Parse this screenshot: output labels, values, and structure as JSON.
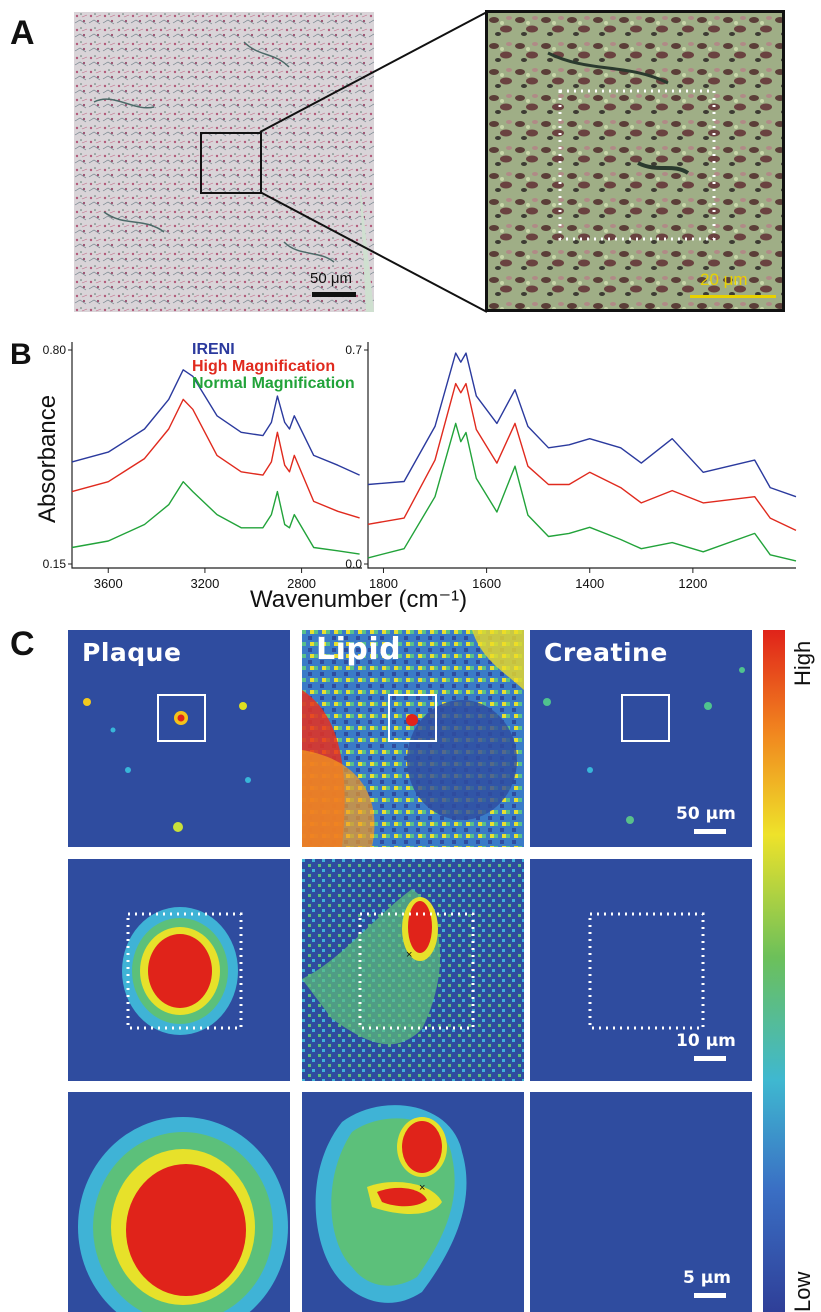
{
  "panel_a": {
    "letter": "A",
    "left_scale": "50 μm",
    "right_scale": "20 μm"
  },
  "panel_b": {
    "letter": "B",
    "ylabel": "Absorbance",
    "xlabel": "Wavenumber (cm⁻¹)",
    "legend": [
      {
        "name": "IRENI",
        "color": "#2b3a9e"
      },
      {
        "name": "High Magnification",
        "color": "#e02a1e"
      },
      {
        "name": "Normal Magnification",
        "color": "#22a33a"
      }
    ],
    "left_yticks": [
      "0.80",
      "0.15"
    ],
    "left_xticks": [
      "3600",
      "3200",
      "2800"
    ],
    "right_yticks": [
      "0.7",
      "0.0"
    ],
    "right_xticks": [
      "1800",
      "1600",
      "1400",
      "1200"
    ]
  },
  "chart_data": [
    {
      "type": "line",
      "x_unit": "cm⁻¹",
      "xlim": [
        3750,
        2550
      ],
      "ylim": [
        0.15,
        0.8
      ],
      "yticks": [
        0.15,
        0.8
      ],
      "xticks": [
        3600,
        3200,
        2800
      ],
      "series": [
        {
          "name": "IRENI",
          "x": [
            3750,
            3600,
            3450,
            3350,
            3290,
            3250,
            3150,
            3050,
            2960,
            2925,
            2900,
            2870,
            2850,
            2830,
            2750,
            2650,
            2560
          ],
          "y": [
            0.46,
            0.49,
            0.56,
            0.65,
            0.74,
            0.72,
            0.6,
            0.55,
            0.54,
            0.58,
            0.66,
            0.58,
            0.56,
            0.6,
            0.48,
            0.45,
            0.42
          ]
        },
        {
          "name": "High Magnification",
          "x": [
            3750,
            3600,
            3450,
            3350,
            3290,
            3250,
            3150,
            3050,
            2960,
            2925,
            2900,
            2870,
            2850,
            2830,
            2750,
            2650,
            2560
          ],
          "y": [
            0.37,
            0.4,
            0.47,
            0.56,
            0.65,
            0.62,
            0.48,
            0.43,
            0.42,
            0.46,
            0.55,
            0.45,
            0.43,
            0.48,
            0.34,
            0.31,
            0.29
          ]
        },
        {
          "name": "Normal Magnification",
          "x": [
            3750,
            3600,
            3450,
            3350,
            3290,
            3250,
            3150,
            3050,
            2960,
            2925,
            2900,
            2870,
            2850,
            2830,
            2750,
            2650,
            2560
          ],
          "y": [
            0.2,
            0.22,
            0.27,
            0.33,
            0.4,
            0.37,
            0.3,
            0.26,
            0.26,
            0.3,
            0.37,
            0.27,
            0.26,
            0.3,
            0.2,
            0.19,
            0.18
          ]
        }
      ]
    },
    {
      "type": "line",
      "x_unit": "cm⁻¹",
      "xlim": [
        1830,
        1000
      ],
      "ylim": [
        0.0,
        0.7
      ],
      "yticks": [
        0.0,
        0.7
      ],
      "xticks": [
        1800,
        1600,
        1400,
        1200
      ],
      "series": [
        {
          "name": "IRENI",
          "x": [
            1830,
            1760,
            1700,
            1660,
            1650,
            1640,
            1620,
            1580,
            1545,
            1520,
            1480,
            1440,
            1400,
            1340,
            1300,
            1240,
            1180,
            1080,
            1050,
            1000
          ],
          "y": [
            0.26,
            0.27,
            0.45,
            0.69,
            0.66,
            0.69,
            0.55,
            0.46,
            0.57,
            0.45,
            0.38,
            0.39,
            0.41,
            0.38,
            0.33,
            0.41,
            0.3,
            0.34,
            0.25,
            0.22
          ]
        },
        {
          "name": "High Magnification",
          "x": [
            1830,
            1760,
            1700,
            1660,
            1650,
            1640,
            1620,
            1580,
            1545,
            1520,
            1480,
            1440,
            1400,
            1340,
            1300,
            1240,
            1180,
            1080,
            1050,
            1000
          ],
          "y": [
            0.13,
            0.15,
            0.34,
            0.59,
            0.56,
            0.59,
            0.44,
            0.33,
            0.46,
            0.32,
            0.26,
            0.26,
            0.3,
            0.25,
            0.2,
            0.24,
            0.2,
            0.22,
            0.15,
            0.11
          ]
        },
        {
          "name": "Normal Magnification",
          "x": [
            1830,
            1760,
            1700,
            1660,
            1650,
            1640,
            1620,
            1580,
            1545,
            1520,
            1480,
            1440,
            1400,
            1340,
            1300,
            1240,
            1180,
            1080,
            1050,
            1000
          ],
          "y": [
            0.02,
            0.05,
            0.22,
            0.46,
            0.4,
            0.43,
            0.28,
            0.17,
            0.32,
            0.16,
            0.09,
            0.1,
            0.12,
            0.08,
            0.05,
            0.07,
            0.04,
            0.1,
            0.03,
            0.01
          ]
        }
      ]
    }
  ],
  "panel_c": {
    "letter": "C",
    "columns": [
      "Plaque",
      "Lipid",
      "Creatine"
    ],
    "row_scales": [
      "50 μm",
      "10 μm",
      "5 μm"
    ],
    "colorbar_high": "High",
    "colorbar_low": "Low"
  }
}
